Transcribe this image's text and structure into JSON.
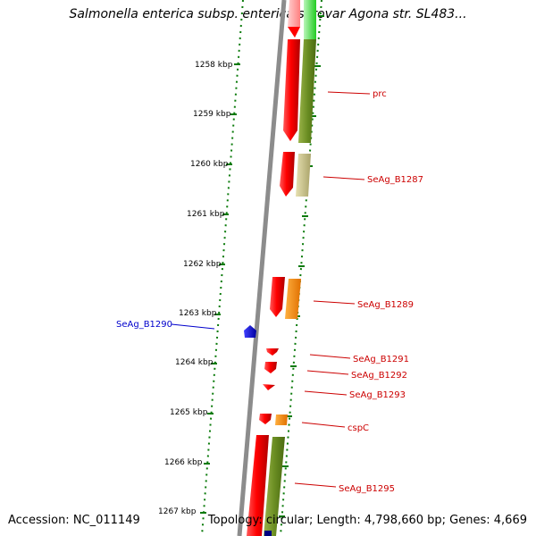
{
  "header": {
    "title": "Salmonella enterica subsp. enterica serovar Agona str. SL483..."
  },
  "footer": {
    "accession": "Accession: NC_011149",
    "summary": "Topology: circular; Length: 4,798,660 bp; Genes: 4,669"
  },
  "colors": {
    "backbone": "#8a8a8a",
    "forward_cds": "#ee0000",
    "reverse_label": "#0000cc",
    "forward_label": "#cc0000",
    "tick": "#0a7a0a",
    "cog_green": "#6b8e23",
    "cog_light_green": "#22cc22",
    "cog_khaki": "#c8c08a",
    "cog_orange": "#ff8c00",
    "cog_navy": "#000080"
  },
  "scale": {
    "ticks": [
      "1258 kbp",
      "1259 kbp",
      "1260 kbp",
      "1261 kbp",
      "1262 kbp",
      "1263 kbp",
      "1264 kbp",
      "1265 kbp",
      "1266 kbp",
      "1267 kbp"
    ]
  },
  "genes": [
    {
      "name": "prc",
      "strand": "forward",
      "cog": "cog_green"
    },
    {
      "name": "SeAg_B1287",
      "strand": "forward",
      "cog": "cog_khaki"
    },
    {
      "name": "SeAg_B1289",
      "strand": "forward",
      "cog": "cog_orange"
    },
    {
      "name": "SeAg_B1290",
      "strand": "reverse",
      "cog": "none"
    },
    {
      "name": "SeAg_B1291",
      "strand": "forward",
      "cog": "none"
    },
    {
      "name": "SeAg_B1292",
      "strand": "forward",
      "cog": "none"
    },
    {
      "name": "SeAg_B1293",
      "strand": "forward",
      "cog": "none"
    },
    {
      "name": "cspC",
      "strand": "forward",
      "cog": "cog_orange"
    },
    {
      "name": "SeAg_B1295",
      "strand": "forward",
      "cog": "cog_green"
    }
  ]
}
